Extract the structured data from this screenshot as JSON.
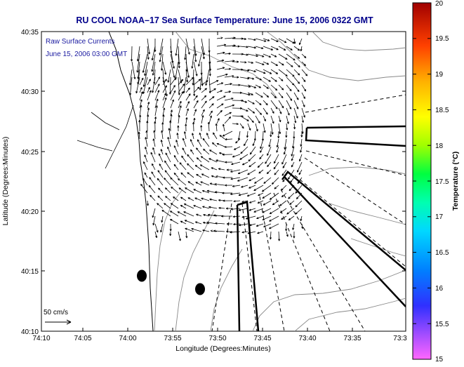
{
  "title": "RU COOL  NOAA–17  Sea Surface Temperature:  June 15, 2006 0322 GMT",
  "map": {
    "overlay_label_1": "Raw Surface Currents",
    "overlay_label_2": "June 15, 2006 03:00 GMT",
    "scale_label": "50 cm/s",
    "xlabel": "Longitude (Degrees:Minutes)",
    "ylabel": "Latitude (Degrees:Minutes)",
    "x_ticks": [
      "74:10",
      "74:05",
      "74:00",
      "73:55",
      "73:50",
      "73:45",
      "73:40",
      "73:35",
      "73:3"
    ],
    "y_ticks": [
      "40:35",
      "40:30",
      "40:25",
      "40:20",
      "40:15",
      "40:10"
    ],
    "colors": {
      "title": "#00008b",
      "overlay": "#1a1aa0",
      "land": "#ffffff",
      "lines": "#000000",
      "contours": "#888888"
    }
  },
  "colorbar": {
    "label": "Temperature (°C)",
    "ticks": [
      "20",
      "19.5",
      "19",
      "18.5",
      "18",
      "17.5",
      "17",
      "16.5",
      "16",
      "15.5",
      "15"
    ],
    "range": [
      15,
      20
    ]
  }
}
